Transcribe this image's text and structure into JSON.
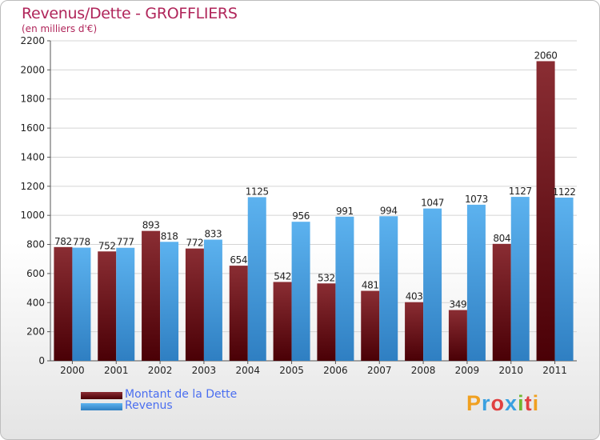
{
  "title": "Revenus/Dette - GROFFLIERS",
  "subtitle": "(en milliers d'€)",
  "chart_data": {
    "type": "bar",
    "title": "Revenus/Dette - GROFFLIERS",
    "ylabel": "(en milliers d'€)",
    "xlabel": "",
    "ylim": [
      0,
      2200
    ],
    "yticks": [
      0,
      200,
      400,
      600,
      800,
      1000,
      1200,
      1400,
      1600,
      1800,
      2000,
      2200
    ],
    "categories": [
      "2000",
      "2001",
      "2002",
      "2003",
      "2004",
      "2005",
      "2006",
      "2007",
      "2008",
      "2009",
      "2010",
      "2011"
    ],
    "series": [
      {
        "name": "Montant de la Dette",
        "color": "#7a1e24",
        "values": [
          782,
          752,
          893,
          772,
          654,
          542,
          532,
          481,
          403,
          349,
          804,
          2060
        ]
      },
      {
        "name": "Revenus",
        "color": "#4aa3e6",
        "values": [
          778,
          777,
          818,
          833,
          1125,
          956,
          991,
          994,
          1047,
          1073,
          1127,
          1122
        ]
      }
    ],
    "legend_position": "bottom-left",
    "grid": true
  },
  "logo": {
    "letters": [
      "P",
      "r",
      "o",
      "x",
      "i",
      "t",
      "i"
    ],
    "colors": [
      "#f0a020",
      "#3aa0e0",
      "#e04040",
      "#3aa0e0",
      "#70b830",
      "#e04040",
      "#f0a020"
    ]
  }
}
